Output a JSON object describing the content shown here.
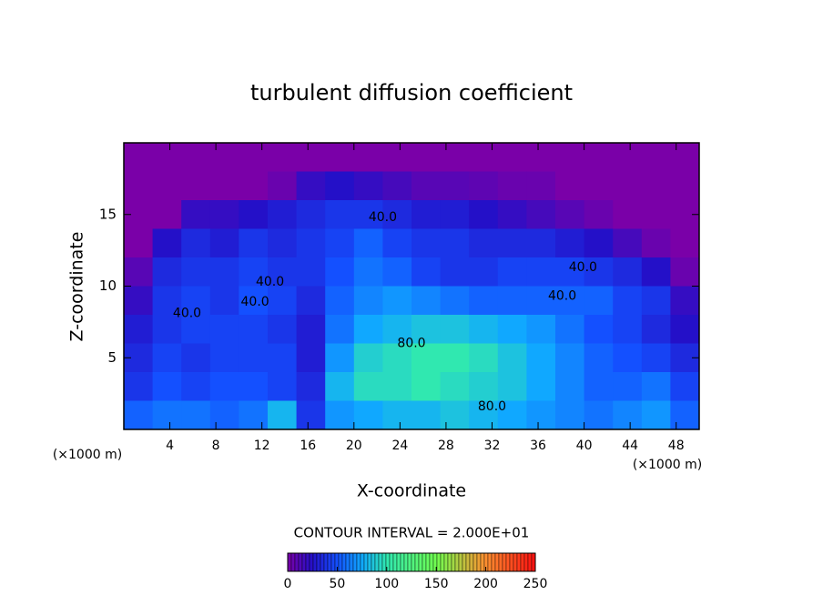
{
  "chart_data": {
    "type": "heatmap",
    "title": "turbulent diffusion coefficient",
    "x_label": "X-coordinate",
    "y_label": "Z-coordinate",
    "x_unit": "(×1000 m)",
    "x_unit_right": "(×1000 m)",
    "contour_note": "CONTOUR INTERVAL = 2.000E+01",
    "xlim": [
      0,
      50
    ],
    "ylim": [
      0,
      20
    ],
    "xticks": [
      4,
      8,
      12,
      16,
      20,
      24,
      28,
      32,
      36,
      40,
      44,
      48
    ],
    "yticks": [
      5,
      10,
      15
    ],
    "x": [
      1.25,
      3.75,
      6.25,
      8.75,
      11.25,
      13.75,
      16.25,
      18.75,
      21.25,
      23.75,
      26.25,
      28.75,
      31.25,
      33.75,
      36.25,
      38.75,
      41.25,
      43.75,
      46.25,
      48.75
    ],
    "y": [
      19,
      17,
      15,
      13,
      11,
      9,
      7,
      5,
      3,
      1
    ],
    "z": [
      [
        0,
        0,
        0,
        0,
        0,
        0,
        0,
        0,
        0,
        0,
        0,
        0,
        0,
        0,
        0,
        0,
        0,
        0,
        0,
        0
      ],
      [
        0,
        0,
        0,
        0,
        0,
        5,
        20,
        25,
        20,
        15,
        10,
        10,
        8,
        5,
        5,
        0,
        0,
        0,
        0,
        0
      ],
      [
        0,
        0,
        20,
        20,
        25,
        30,
        35,
        40,
        40,
        35,
        30,
        30,
        25,
        20,
        15,
        10,
        5,
        0,
        0,
        0
      ],
      [
        0,
        25,
        35,
        30,
        40,
        35,
        40,
        45,
        55,
        45,
        40,
        40,
        35,
        35,
        35,
        30,
        25,
        15,
        5,
        0
      ],
      [
        10,
        35,
        40,
        40,
        45,
        40,
        40,
        50,
        60,
        55,
        45,
        40,
        40,
        45,
        45,
        45,
        40,
        35,
        25,
        5
      ],
      [
        20,
        40,
        45,
        40,
        50,
        45,
        35,
        55,
        65,
        70,
        65,
        60,
        55,
        55,
        55,
        55,
        55,
        45,
        40,
        20
      ],
      [
        30,
        40,
        45,
        45,
        45,
        40,
        30,
        60,
        75,
        80,
        85,
        85,
        80,
        75,
        70,
        60,
        50,
        45,
        35,
        25
      ],
      [
        35,
        45,
        40,
        45,
        45,
        45,
        30,
        70,
        90,
        95,
        100,
        100,
        95,
        85,
        75,
        65,
        55,
        50,
        45,
        35
      ],
      [
        40,
        50,
        45,
        50,
        50,
        45,
        35,
        80,
        95,
        95,
        100,
        95,
        90,
        85,
        75,
        65,
        55,
        55,
        60,
        45
      ],
      [
        55,
        60,
        60,
        55,
        60,
        80,
        40,
        70,
        75,
        80,
        80,
        85,
        80,
        75,
        70,
        65,
        60,
        65,
        70,
        55
      ]
    ],
    "colorscale": [
      [
        0,
        "#7a00a8"
      ],
      [
        25,
        "#2410c8"
      ],
      [
        50,
        "#1450ff"
      ],
      [
        75,
        "#10a8ff"
      ],
      [
        100,
        "#30e8b0"
      ],
      [
        150,
        "#70ff50"
      ],
      [
        200,
        "#ff9030"
      ],
      [
        250,
        "#ff1010"
      ]
    ],
    "colorbar_ticks": [
      0,
      50,
      100,
      150,
      200,
      250
    ],
    "contour_labels": [
      {
        "label": "40.0",
        "x": 22.5,
        "y": 14.8
      },
      {
        "label": "40.0",
        "x": 39.9,
        "y": 11.3
      },
      {
        "label": "40.0",
        "x": 38.1,
        "y": 9.3
      },
      {
        "label": "40.0",
        "x": 12.7,
        "y": 10.3
      },
      {
        "label": "40.0",
        "x": 11.4,
        "y": 8.9
      },
      {
        "label": "40.0",
        "x": 5.5,
        "y": 8.1
      },
      {
        "label": "80.0",
        "x": 25.0,
        "y": 6.0
      },
      {
        "label": "80.0",
        "x": 32.0,
        "y": 1.6
      }
    ]
  }
}
